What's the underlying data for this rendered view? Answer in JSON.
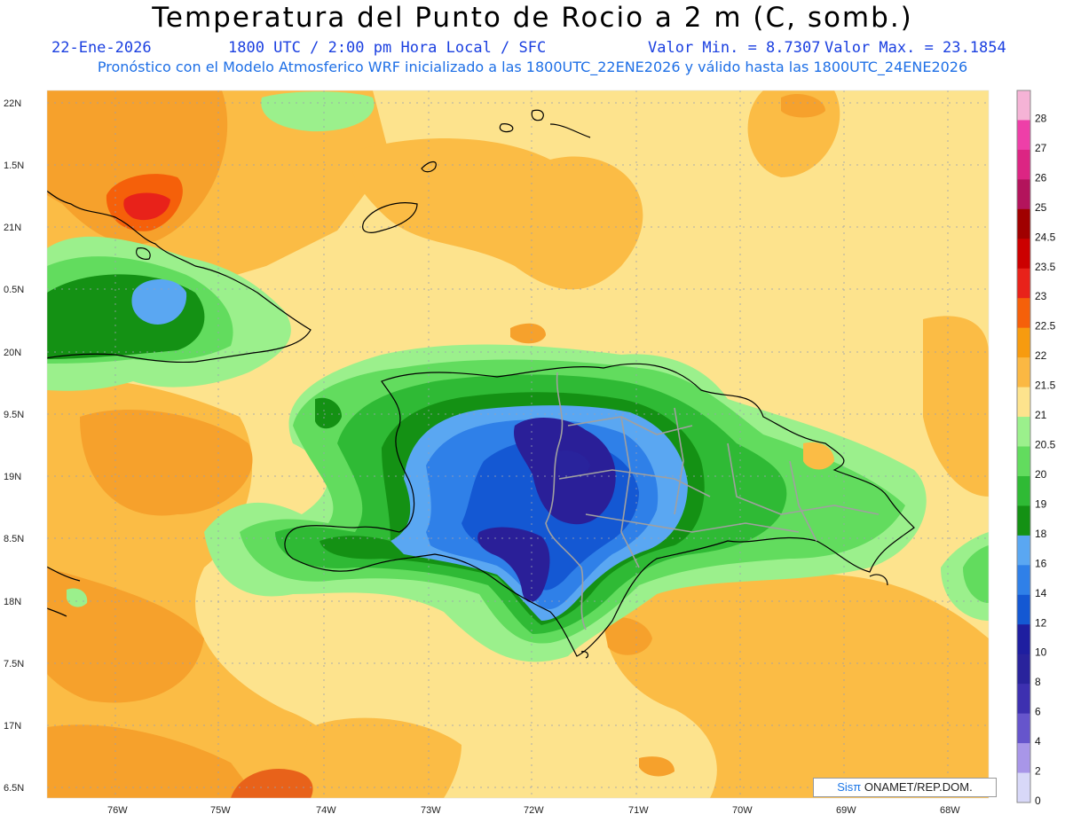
{
  "header": {
    "title": "Temperatura del Punto de Rocio a 2 m (C, somb.)",
    "date": "22-Ene-2026",
    "time": "1800 UTC / 2:00 pm Hora Local / SFC",
    "min": "Valor Min. = 8.7307",
    "max": "Valor Max. = 23.1854",
    "subtitle": "Pronóstico con el Modelo Atmosferico WRF inicializado a las 1800UTC_22ENE2026 y válido hasta las  1800UTC_24ENE2026"
  },
  "axes": {
    "lat": [
      "22N",
      "1.5N",
      "21N",
      "0.5N",
      "20N",
      "9.5N",
      "19N",
      "8.5N",
      "18N",
      "7.5N",
      "17N",
      "6.5N"
    ],
    "lon": [
      "76W",
      "75W",
      "74W",
      "73W",
      "72W",
      "71W",
      "70W",
      "69W",
      "68W"
    ]
  },
  "colorbar": {
    "labels": [
      "28",
      "27",
      "26",
      "25",
      "24.5",
      "23.5",
      "23",
      "22.5",
      "22",
      "21.5",
      "21",
      "20.5",
      "20",
      "19",
      "18",
      "16",
      "14",
      "12",
      "10",
      "8",
      "6",
      "4",
      "2",
      "0"
    ],
    "colors": [
      "#f5b3d6",
      "#ee3fa8",
      "#dc2583",
      "#b3145c",
      "#a00000",
      "#cc0000",
      "#e8221a",
      "#f5600a",
      "#f79b0f",
      "#fbb843",
      "#fde38d",
      "#9bf08c",
      "#62dc5e",
      "#2fba35",
      "#149114",
      "#5aa7f2",
      "#2f80e8",
      "#1458d3",
      "#1e1ea0",
      "#29239c",
      "#3d30b0",
      "#6655cc",
      "#a896e8",
      "#d8d8f8"
    ]
  },
  "field_colors": {
    "orange": "#f6a12c",
    "light_orange": "#fbbc45",
    "pale": "#fde38d",
    "light_green": "#9bf08c",
    "green": "#62dc5e",
    "mid_green": "#2fba35",
    "dark_green": "#149114",
    "light_blue": "#5aa7f2",
    "blue": "#2f80e8",
    "dark_blue": "#1458d3",
    "indigo": "#2a1f98",
    "red": "#e8221a"
  },
  "credit": {
    "brand": "Sisπ",
    "text": " ONAMET/REP.DOM."
  }
}
